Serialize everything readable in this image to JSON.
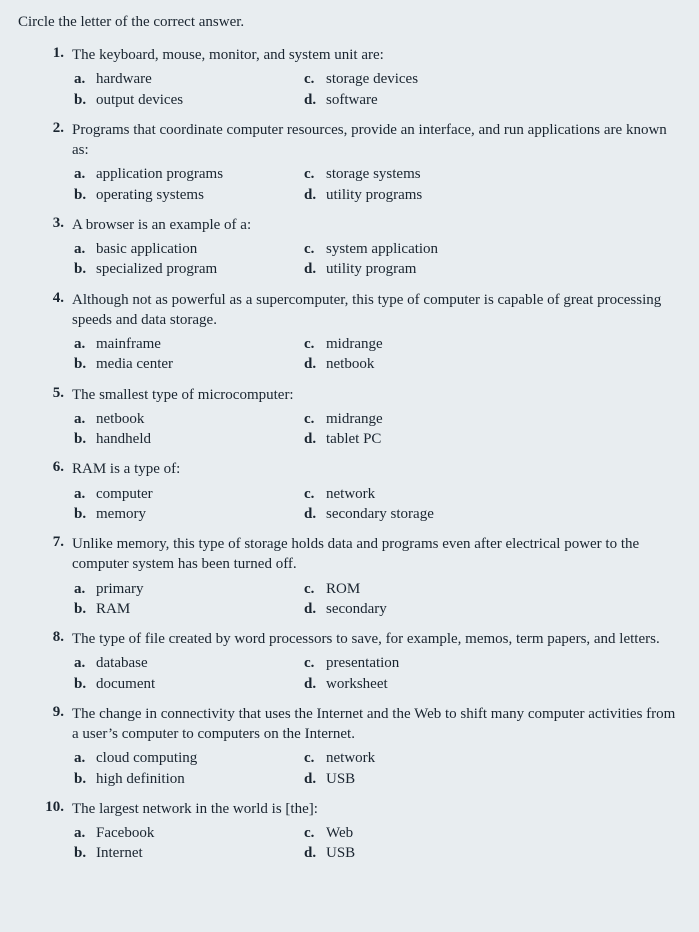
{
  "instructions": "Circle the letter of the correct answer.",
  "questions": [
    {
      "num": "1.",
      "text": "The keyboard, mouse, monitor, and system unit are:",
      "a": "hardware",
      "b": "output devices",
      "c": "storage devices",
      "d": "software"
    },
    {
      "num": "2.",
      "text": "Programs that coordinate computer resources, provide an interface, and run applications are known as:",
      "a": "application programs",
      "b": "operating systems",
      "c": "storage systems",
      "d": "utility programs"
    },
    {
      "num": "3.",
      "text": "A browser is an example of a:",
      "a": "basic application",
      "b": "specialized program",
      "c": "system application",
      "d": "utility program"
    },
    {
      "num": "4.",
      "text": "Although not as powerful as a supercomputer, this type of computer is capable of great processing speeds and data storage.",
      "a": "mainframe",
      "b": "media center",
      "c": "midrange",
      "d": "netbook"
    },
    {
      "num": "5.",
      "text": "The smallest type of microcomputer:",
      "a": "netbook",
      "b": "handheld",
      "c": "midrange",
      "d": "tablet PC"
    },
    {
      "num": "6.",
      "text": "RAM is a type of:",
      "a": "computer",
      "b": "memory",
      "c": "network",
      "d": "secondary storage"
    },
    {
      "num": "7.",
      "text": "Unlike memory, this type of storage holds data and programs even after electrical power to the computer system has been turned off.",
      "a": "primary",
      "b": "RAM",
      "c": "ROM",
      "d": "secondary"
    },
    {
      "num": "8.",
      "text": "The type of file created by word processors to save, for example, memos, term papers, and letters.",
      "a": "database",
      "b": "document",
      "c": "presentation",
      "d": "worksheet"
    },
    {
      "num": "9.",
      "text": "The change in connectivity that uses the Internet and the Web to shift many computer activities from a user’s computer to computers on the Internet.",
      "a": "cloud computing",
      "b": "high definition",
      "c": "network",
      "d": "USB"
    },
    {
      "num": "10.",
      "text": "The largest network in the world is [the]:",
      "a": "Facebook",
      "b": "Internet",
      "c": "Web",
      "d": "USB"
    }
  ],
  "labels": {
    "a": "a.",
    "b": "b.",
    "c": "c.",
    "d": "d."
  }
}
